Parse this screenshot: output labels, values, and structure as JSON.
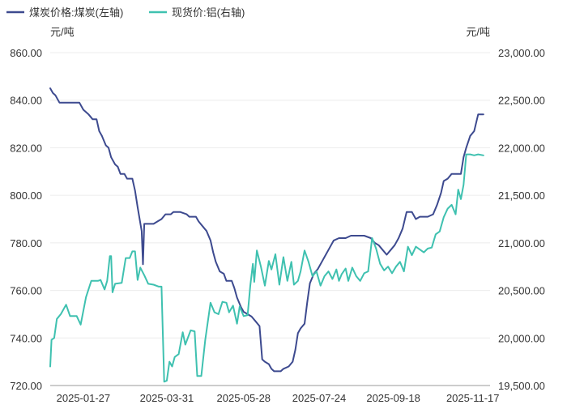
{
  "chart_data": {
    "type": "line",
    "legend": [
      {
        "name": "煤炭价格:煤炭(左轴)",
        "color": "#3d4a8f"
      },
      {
        "name": "现货价:铝(右轴)",
        "color": "#3fc1b0"
      }
    ],
    "left_unit": "元/吨",
    "right_unit": "元/吨",
    "grid": true,
    "legend_position": "top-left",
    "x_ticks": [
      "2025-01-27",
      "2025-03-31",
      "2025-05-28",
      "2025-07-24",
      "2025-09-18",
      "2025-11-17"
    ],
    "x_range": [
      "2025-01-02",
      "2025-11-30"
    ],
    "left_axis": {
      "ticks": [
        "720.00",
        "740.00",
        "760.00",
        "780.00",
        "800.00",
        "820.00",
        "840.00",
        "860.00"
      ],
      "ylim": [
        720,
        860
      ]
    },
    "right_axis": {
      "ticks": [
        "19,500.00",
        "20,000.00",
        "20,500.00",
        "21,000.00",
        "21,500.00",
        "22,000.00",
        "22,500.00",
        "23,000.00"
      ],
      "ylim": [
        19500,
        23000
      ]
    },
    "series": [
      {
        "name": "煤炭价格:煤炭(左轴)",
        "axis": "left",
        "color": "#3d4a8f",
        "points": [
          [
            "2025-01-02",
            845
          ],
          [
            "2025-01-04",
            843
          ],
          [
            "2025-01-06",
            842
          ],
          [
            "2025-01-09",
            839
          ],
          [
            "2025-01-13",
            839
          ],
          [
            "2025-01-18",
            839
          ],
          [
            "2025-01-24",
            839
          ],
          [
            "2025-01-27",
            836
          ],
          [
            "2025-01-31",
            834
          ],
          [
            "2025-02-03",
            832
          ],
          [
            "2025-02-06",
            832
          ],
          [
            "2025-02-08",
            827
          ],
          [
            "2025-02-10",
            825
          ],
          [
            "2025-02-13",
            821
          ],
          [
            "2025-02-15",
            820
          ],
          [
            "2025-02-17",
            816
          ],
          [
            "2025-02-20",
            813
          ],
          [
            "2025-02-22",
            812
          ],
          [
            "2025-02-24",
            809
          ],
          [
            "2025-02-27",
            809
          ],
          [
            "2025-03-01",
            807
          ],
          [
            "2025-03-05",
            807
          ],
          [
            "2025-03-07",
            802
          ],
          [
            "2025-03-09",
            795
          ],
          [
            "2025-03-12",
            785
          ],
          [
            "2025-03-13",
            771
          ],
          [
            "2025-03-14",
            788
          ],
          [
            "2025-03-17",
            788
          ],
          [
            "2025-03-21",
            788
          ],
          [
            "2025-03-24",
            789
          ],
          [
            "2025-03-27",
            790
          ],
          [
            "2025-03-30",
            792
          ],
          [
            "2025-04-03",
            792
          ],
          [
            "2025-04-05",
            793
          ],
          [
            "2025-04-10",
            793
          ],
          [
            "2025-04-15",
            792
          ],
          [
            "2025-04-17",
            791
          ],
          [
            "2025-04-22",
            791
          ],
          [
            "2025-04-24",
            789
          ],
          [
            "2025-04-27",
            787
          ],
          [
            "2025-04-30",
            785
          ],
          [
            "2025-05-03",
            781
          ],
          [
            "2025-05-05",
            776
          ],
          [
            "2025-05-07",
            772
          ],
          [
            "2025-05-10",
            768
          ],
          [
            "2025-05-13",
            767
          ],
          [
            "2025-05-15",
            764
          ],
          [
            "2025-05-19",
            764
          ],
          [
            "2025-05-21",
            761
          ],
          [
            "2025-05-23",
            757
          ],
          [
            "2025-05-26",
            753
          ],
          [
            "2025-05-28",
            751
          ],
          [
            "2025-05-31",
            750
          ],
          [
            "2025-06-03",
            749
          ],
          [
            "2025-06-06",
            747
          ],
          [
            "2025-06-09",
            745
          ],
          [
            "2025-06-11",
            731
          ],
          [
            "2025-06-13",
            730
          ],
          [
            "2025-06-16",
            729
          ],
          [
            "2025-06-18",
            727
          ],
          [
            "2025-06-20",
            726
          ],
          [
            "2025-06-25",
            726
          ],
          [
            "2025-06-27",
            727
          ],
          [
            "2025-07-01",
            728
          ],
          [
            "2025-07-04",
            730
          ],
          [
            "2025-07-06",
            735
          ],
          [
            "2025-07-08",
            742
          ],
          [
            "2025-07-10",
            744
          ],
          [
            "2025-07-13",
            746
          ],
          [
            "2025-07-15",
            755
          ],
          [
            "2025-07-17",
            763
          ],
          [
            "2025-07-20",
            767
          ],
          [
            "2025-07-23",
            769
          ],
          [
            "2025-07-26",
            772
          ],
          [
            "2025-07-29",
            775
          ],
          [
            "2025-08-01",
            778
          ],
          [
            "2025-08-04",
            781
          ],
          [
            "2025-08-08",
            782
          ],
          [
            "2025-08-13",
            782
          ],
          [
            "2025-08-17",
            783
          ],
          [
            "2025-08-22",
            783
          ],
          [
            "2025-08-27",
            783
          ],
          [
            "2025-09-01",
            782
          ],
          [
            "2025-09-04",
            780
          ],
          [
            "2025-09-07",
            779
          ],
          [
            "2025-09-10",
            777
          ],
          [
            "2025-09-13",
            775
          ],
          [
            "2025-09-16",
            777
          ],
          [
            "2025-09-19",
            779
          ],
          [
            "2025-09-22",
            782
          ],
          [
            "2025-09-25",
            786
          ],
          [
            "2025-09-28",
            793
          ],
          [
            "2025-10-02",
            793
          ],
          [
            "2025-10-05",
            790
          ],
          [
            "2025-10-08",
            791
          ],
          [
            "2025-10-14",
            791
          ],
          [
            "2025-10-18",
            792
          ],
          [
            "2025-10-21",
            796
          ],
          [
            "2025-10-24",
            801
          ],
          [
            "2025-10-26",
            806
          ],
          [
            "2025-10-29",
            807
          ],
          [
            "2025-11-01",
            809
          ],
          [
            "2025-11-04",
            809
          ],
          [
            "2025-11-08",
            809
          ],
          [
            "2025-11-10",
            816
          ],
          [
            "2025-11-12",
            820
          ],
          [
            "2025-11-15",
            825
          ],
          [
            "2025-11-18",
            827
          ],
          [
            "2025-11-21",
            834
          ],
          [
            "2025-11-25",
            834
          ]
        ]
      },
      {
        "name": "现货价:铝(右轴)",
        "axis": "right",
        "color": "#3fc1b0",
        "points": [
          [
            "2025-01-02",
            19700
          ],
          [
            "2025-01-03",
            19980
          ],
          [
            "2025-01-05",
            20000
          ],
          [
            "2025-01-07",
            20200
          ],
          [
            "2025-01-10",
            20250
          ],
          [
            "2025-01-14",
            20350
          ],
          [
            "2025-01-17",
            20230
          ],
          [
            "2025-01-22",
            20230
          ],
          [
            "2025-01-25",
            20140
          ],
          [
            "2025-01-29",
            20430
          ],
          [
            "2025-02-02",
            20600
          ],
          [
            "2025-02-07",
            20600
          ],
          [
            "2025-02-09",
            20610
          ],
          [
            "2025-02-12",
            20510
          ],
          [
            "2025-02-14",
            20600
          ],
          [
            "2025-02-16",
            20860
          ],
          [
            "2025-02-17",
            20860
          ],
          [
            "2025-02-18",
            20480
          ],
          [
            "2025-02-20",
            20570
          ],
          [
            "2025-02-25",
            20580
          ],
          [
            "2025-02-28",
            20840
          ],
          [
            "2025-03-03",
            20840
          ],
          [
            "2025-03-05",
            20910
          ],
          [
            "2025-03-07",
            20910
          ],
          [
            "2025-03-09",
            20610
          ],
          [
            "2025-03-11",
            20740
          ],
          [
            "2025-03-14",
            20660
          ],
          [
            "2025-03-17",
            20570
          ],
          [
            "2025-03-21",
            20560
          ],
          [
            "2025-03-25",
            20540
          ],
          [
            "2025-03-27",
            20540
          ],
          [
            "2025-03-29",
            19540
          ],
          [
            "2025-03-31",
            19550
          ],
          [
            "2025-04-02",
            19750
          ],
          [
            "2025-04-04",
            19700
          ],
          [
            "2025-04-06",
            19800
          ],
          [
            "2025-04-09",
            19830
          ],
          [
            "2025-04-12",
            20060
          ],
          [
            "2025-04-14",
            19930
          ],
          [
            "2025-04-18",
            20080
          ],
          [
            "2025-04-21",
            20070
          ],
          [
            "2025-04-23",
            19600
          ],
          [
            "2025-04-26",
            19600
          ],
          [
            "2025-04-29",
            19980
          ],
          [
            "2025-05-03",
            20370
          ],
          [
            "2025-05-06",
            20270
          ],
          [
            "2025-05-09",
            20250
          ],
          [
            "2025-05-12",
            20380
          ],
          [
            "2025-05-15",
            20370
          ],
          [
            "2025-05-17",
            20270
          ],
          [
            "2025-05-20",
            20340
          ],
          [
            "2025-05-23",
            20150
          ],
          [
            "2025-05-25",
            20330
          ],
          [
            "2025-05-28",
            20230
          ],
          [
            "2025-05-31",
            20240
          ],
          [
            "2025-06-02",
            20550
          ],
          [
            "2025-06-04",
            20780
          ],
          [
            "2025-06-05",
            20590
          ],
          [
            "2025-06-07",
            20920
          ],
          [
            "2025-06-10",
            20750
          ],
          [
            "2025-06-13",
            20550
          ],
          [
            "2025-06-16",
            20810
          ],
          [
            "2025-06-18",
            20720
          ],
          [
            "2025-06-21",
            20880
          ],
          [
            "2025-06-24",
            20560
          ],
          [
            "2025-06-27",
            20850
          ],
          [
            "2025-06-30",
            20600
          ],
          [
            "2025-07-03",
            20800
          ],
          [
            "2025-07-05",
            20560
          ],
          [
            "2025-07-08",
            20600
          ],
          [
            "2025-07-10",
            20700
          ],
          [
            "2025-07-13",
            20920
          ],
          [
            "2025-07-16",
            20800
          ],
          [
            "2025-07-19",
            20650
          ],
          [
            "2025-07-22",
            20700
          ],
          [
            "2025-07-25",
            20550
          ],
          [
            "2025-07-28",
            20650
          ],
          [
            "2025-07-31",
            20700
          ],
          [
            "2025-08-03",
            20620
          ],
          [
            "2025-08-06",
            20720
          ],
          [
            "2025-08-08",
            20600
          ],
          [
            "2025-08-10",
            20670
          ],
          [
            "2025-08-13",
            20730
          ],
          [
            "2025-08-15",
            20600
          ],
          [
            "2025-08-18",
            20740
          ],
          [
            "2025-08-21",
            20650
          ],
          [
            "2025-08-24",
            20600
          ],
          [
            "2025-08-27",
            20680
          ],
          [
            "2025-08-30",
            20700
          ],
          [
            "2025-09-02",
            21050
          ],
          [
            "2025-09-05",
            20940
          ],
          [
            "2025-09-08",
            20780
          ],
          [
            "2025-09-11",
            20710
          ],
          [
            "2025-09-14",
            20750
          ],
          [
            "2025-09-17",
            20680
          ],
          [
            "2025-09-20",
            20750
          ],
          [
            "2025-09-23",
            20800
          ],
          [
            "2025-09-26",
            20700
          ],
          [
            "2025-09-29",
            20960
          ],
          [
            "2025-10-02",
            20870
          ],
          [
            "2025-10-05",
            20960
          ],
          [
            "2025-10-08",
            20930
          ],
          [
            "2025-10-11",
            20900
          ],
          [
            "2025-10-14",
            20940
          ],
          [
            "2025-10-17",
            20950
          ],
          [
            "2025-10-20",
            21090
          ],
          [
            "2025-10-23",
            21120
          ],
          [
            "2025-10-26",
            21270
          ],
          [
            "2025-10-29",
            21360
          ],
          [
            "2025-11-01",
            21400
          ],
          [
            "2025-11-04",
            21300
          ],
          [
            "2025-11-06",
            21560
          ],
          [
            "2025-11-08",
            21460
          ],
          [
            "2025-11-10",
            21610
          ],
          [
            "2025-11-12",
            21930
          ],
          [
            "2025-11-15",
            21930
          ],
          [
            "2025-11-18",
            21920
          ],
          [
            "2025-11-21",
            21930
          ],
          [
            "2025-11-25",
            21920
          ]
        ]
      }
    ]
  }
}
